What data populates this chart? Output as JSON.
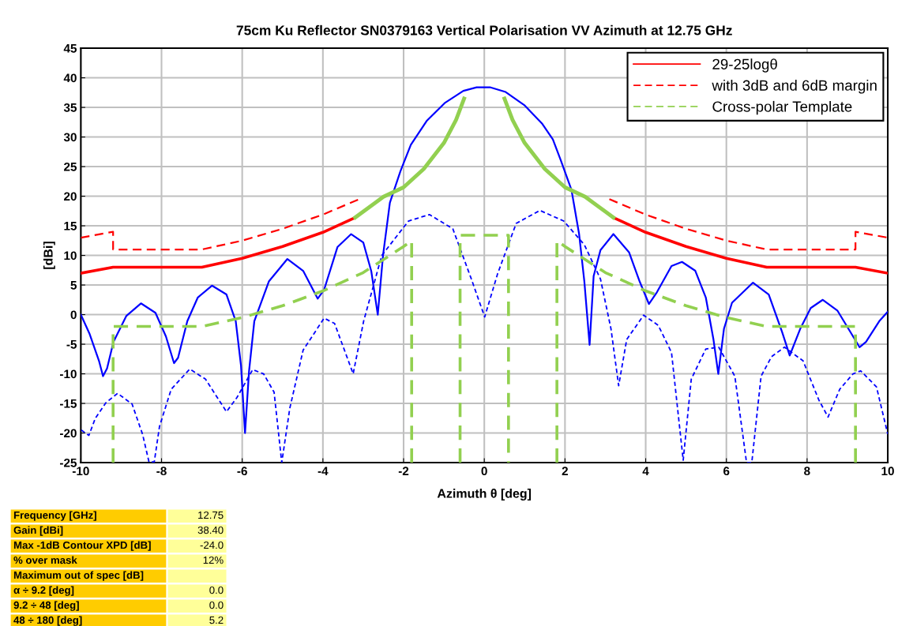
{
  "chart_data": {
    "type": "line",
    "title": "75cm Ku Reflector SN0379163 Vertical Polarisation VV Azimuth at 12.75 GHz",
    "xlabel": "Azimuth θ [deg]",
    "ylabel": "[dBi]",
    "xlim": [
      -10,
      10
    ],
    "xticks": [
      -10,
      -8,
      -6,
      -4,
      -2,
      0,
      2,
      4,
      6,
      8,
      10
    ],
    "ylim": [
      -25,
      45
    ],
    "yticks": [
      -25,
      -20,
      -15,
      -10,
      -5,
      0,
      5,
      10,
      15,
      20,
      25,
      30,
      35,
      40,
      45
    ],
    "grid": true,
    "legend": "top right",
    "marker": "none",
    "series": [
      {
        "color": "#0000ff",
        "line_style": "solid",
        "x": [
          -10.0,
          -9.78,
          -9.55,
          -9.45,
          -9.35,
          -9.19,
          -8.87,
          -8.51,
          -8.15,
          -7.89,
          -7.69,
          -7.59,
          -7.36,
          -7.1,
          -6.75,
          -6.39,
          -6.16,
          -6.03,
          -5.93,
          -5.83,
          -5.7,
          -5.34,
          -4.88,
          -4.49,
          -4.13,
          -3.97,
          -3.64,
          -3.3,
          -3.0,
          -2.8,
          -2.64,
          -2.51,
          -2.34,
          -2.08,
          -1.82,
          -1.43,
          -0.97,
          -0.52,
          -0.19,
          0.14,
          0.53,
          0.99,
          1.44,
          1.7,
          1.9,
          2.16,
          2.35,
          2.48,
          2.61,
          2.71,
          2.88,
          3.2,
          3.59,
          3.85,
          4.08,
          4.28,
          4.64,
          4.9,
          5.23,
          5.49,
          5.68,
          5.8,
          5.94,
          6.14,
          6.66,
          7.05,
          7.38,
          7.57,
          7.83,
          8.09,
          8.39,
          8.75,
          9.07,
          9.3,
          9.46,
          9.79,
          10.0
        ],
        "values": [
          0,
          -3.3,
          -7.8,
          -10.4,
          -9.1,
          -4.6,
          -0.2,
          1.9,
          0.3,
          -3.7,
          -8.2,
          -7.3,
          -1.1,
          2.9,
          4.9,
          3.4,
          -1.1,
          -8.6,
          -20.0,
          -9.5,
          -1.1,
          5.6,
          9.4,
          7.4,
          2.7,
          4.2,
          11.4,
          13.6,
          12.2,
          7.3,
          0.0,
          10.0,
          18.9,
          24.2,
          28.7,
          32.7,
          35.8,
          37.8,
          38.4,
          38.4,
          37.6,
          35.4,
          32.2,
          29.6,
          26.0,
          21.1,
          13.6,
          5.6,
          -5.1,
          6.5,
          10.9,
          13.6,
          10.5,
          5.6,
          1.8,
          3.8,
          8.2,
          8.9,
          7.4,
          2.9,
          -4.2,
          -10.0,
          -2.4,
          2.0,
          5.4,
          3.4,
          -2.9,
          -6.9,
          -2.4,
          1.1,
          2.5,
          0.7,
          -2.9,
          -5.5,
          -4.6,
          -1.1,
          0.5
        ]
      },
      {
        "color": "#0000ff",
        "line_style": "dashed",
        "x": [
          -9.99,
          -9.8,
          -9.64,
          -9.38,
          -9.09,
          -8.73,
          -8.47,
          -8.31,
          -8.18,
          -8.05,
          -7.76,
          -7.3,
          -6.91,
          -6.58,
          -6.39,
          -6.13,
          -5.74,
          -5.47,
          -5.21,
          -5.02,
          -4.82,
          -4.49,
          -3.97,
          -3.71,
          -3.25,
          -2.99,
          -2.54,
          -1.88,
          -1.36,
          -0.78,
          -0.32,
          0.01,
          0.33,
          0.79,
          1.38,
          1.97,
          2.48,
          2.88,
          3.14,
          3.33,
          3.53,
          3.95,
          4.31,
          4.64,
          4.93,
          5.13,
          5.49,
          5.81,
          6.21,
          6.5,
          6.63,
          6.86,
          7.12,
          7.44,
          7.9,
          8.29,
          8.52,
          8.81,
          9.14,
          9.33,
          9.72,
          10.0
        ],
        "values": [
          -19.5,
          -20.4,
          -17.5,
          -14.9,
          -13.3,
          -15.1,
          -20.2,
          -24.9,
          -24.9,
          -18.9,
          -12.6,
          -9.2,
          -10.9,
          -14.4,
          -16.4,
          -14.0,
          -9.3,
          -10.0,
          -13.1,
          -25.0,
          -15.8,
          -6.0,
          -0.6,
          -1.5,
          -10.0,
          -1.1,
          10.0,
          15.8,
          16.9,
          14.5,
          6.0,
          -0.4,
          6.9,
          15.4,
          17.6,
          15.8,
          11.8,
          6.0,
          -2.4,
          -12.0,
          -4.2,
          -0.1,
          -1.8,
          -6.4,
          -24.6,
          -10.9,
          -5.8,
          -5.5,
          -10.4,
          -25.0,
          -25.0,
          -10.4,
          -7.1,
          -5.5,
          -7.8,
          -14.4,
          -17.3,
          -12.6,
          -10.0,
          -9.5,
          -12.2,
          -20.2
        ]
      },
      {
        "name": "29-25logθ",
        "color": "#ff0000",
        "line_style": "solid",
        "x": [
          -10,
          -9.2,
          -7,
          -6,
          -5,
          -4,
          -3.2,
          null,
          3.2,
          4,
          5,
          6,
          7,
          9.2,
          10
        ],
        "values": [
          7,
          8,
          8,
          9.5,
          11.5,
          13.9,
          16.4,
          null,
          16.4,
          13.9,
          11.5,
          9.5,
          8,
          8,
          7
        ]
      },
      {
        "name": "with 3dB and 6dB margin",
        "color": "#ff0000",
        "line_style": "dashed",
        "x": [
          -10,
          -9.2,
          -9.2,
          -7,
          -6,
          -5,
          -4,
          -3.1,
          null,
          3.1,
          4,
          5,
          6,
          7,
          9.2,
          9.2,
          10
        ],
        "values": [
          13,
          14,
          11,
          11,
          12.5,
          14.5,
          16.9,
          19.5,
          null,
          19.5,
          16.9,
          14.5,
          12.5,
          11,
          11,
          14,
          13
        ]
      },
      {
        "name": "Cross-polar Template",
        "color": "#92d050",
        "line_style": "dashed",
        "x": [
          -9.2,
          -9.2,
          -7,
          -6,
          -5,
          -4,
          -3,
          -2,
          -1.8,
          -1.8,
          null,
          -0.6,
          -0.6,
          0.6,
          0.6,
          null,
          1.8,
          1.8,
          2,
          3,
          4,
          5,
          6,
          7,
          9.2,
          9.2
        ],
        "values": [
          -25,
          -2,
          -2,
          -0.5,
          1.5,
          4,
          7.1,
          11.5,
          12.5,
          -25,
          null,
          -25,
          13.4,
          13.4,
          -25,
          null,
          -25,
          12.5,
          11.5,
          7.1,
          4,
          1.5,
          -0.5,
          -2,
          -2,
          -25
        ]
      },
      {
        "color": "#92d050",
        "line_style": "solid",
        "x": [
          -3.2,
          -2.5,
          -2,
          -1.5,
          -1,
          -0.7,
          -0.5,
          null,
          0.5,
          0.7,
          1,
          1.5,
          2,
          2.5,
          3.2
        ],
        "values": [
          16.4,
          19.9,
          21.5,
          24.6,
          29,
          32.9,
          36.5,
          null,
          36.5,
          32.9,
          29,
          24.6,
          21.5,
          19.9,
          16.4
        ]
      }
    ],
    "annotations": [
      "Frequency [GHz]",
      "12.75",
      "Gain [dBi]",
      "38.40",
      "Max -1dB Contour XPD [dB]",
      "-24.0",
      "% over mask",
      "12%",
      "Maximum out of spec [dB]",
      "α ÷ 9.2 [deg]",
      "0.0",
      "9.2 ÷ 48 [deg]",
      "0.0",
      "48 ÷ 180 [deg]",
      "5.2"
    ]
  }
}
